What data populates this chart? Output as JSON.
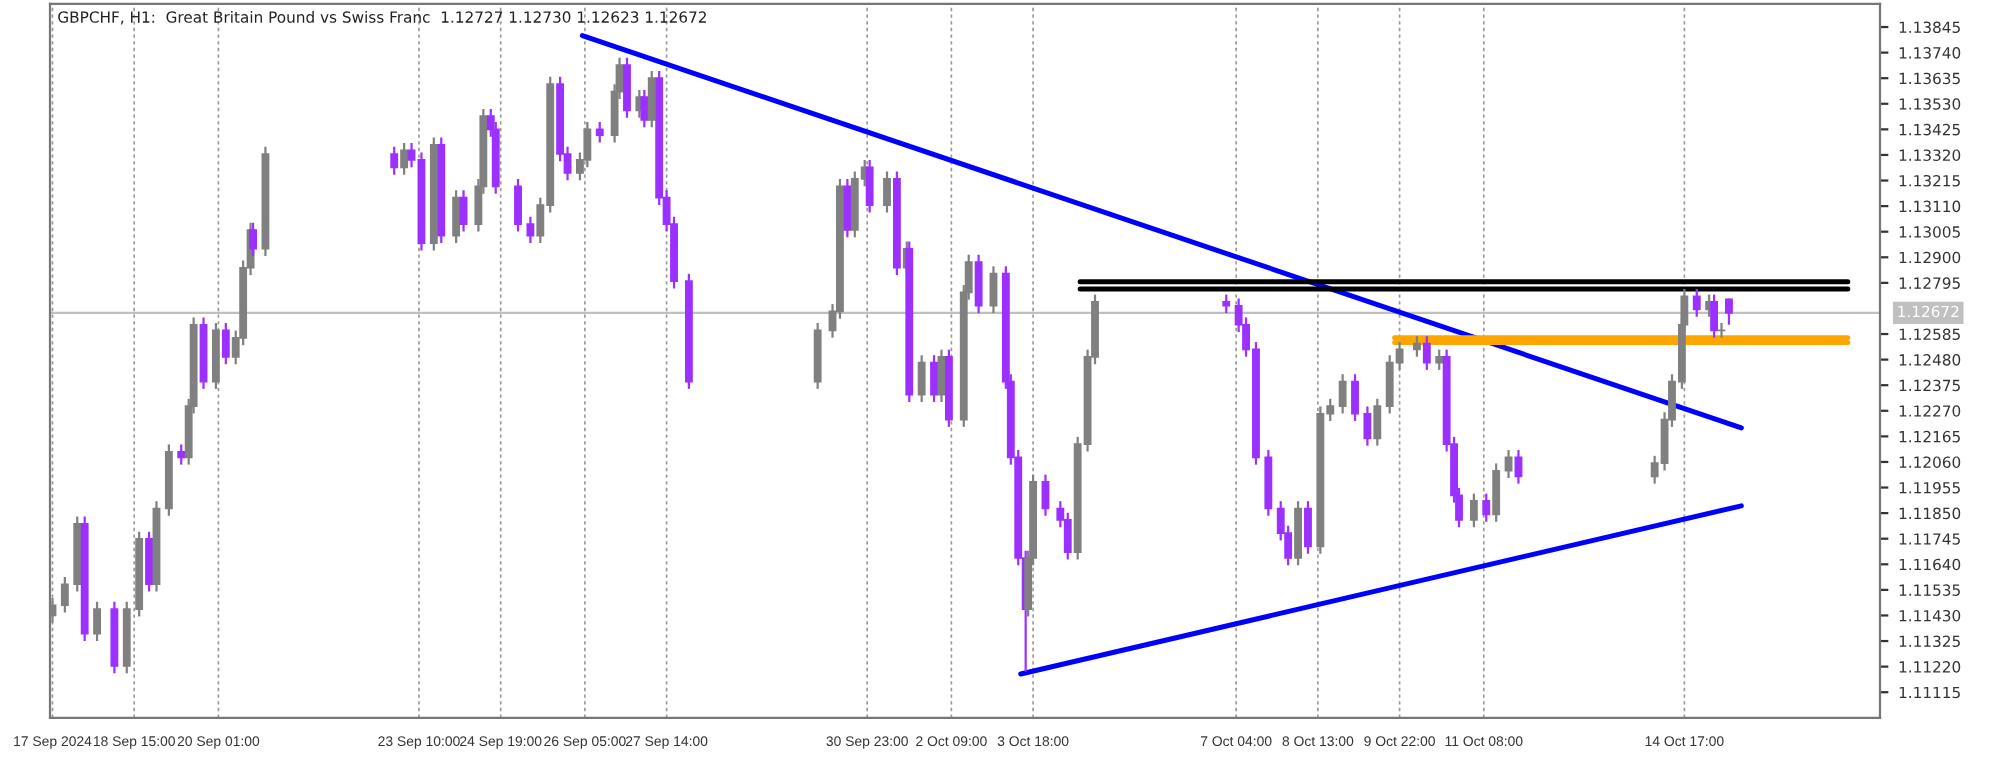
{
  "chart_data": {
    "type": "candlestick",
    "title": "GBPCHF, H1:  Great Britain Pound vs Swiss Franc  1.12727 1.12730 1.12623 1.12672",
    "x": [
      "2024-09-17T06:00",
      "2024-09-17T11:00",
      "2024-09-17T16:00",
      "2024-09-17T19:00",
      "2024-09-18T00:00",
      "2024-09-18T07:00",
      "2024-09-18T12:00",
      "2024-09-18T17:00",
      "2024-09-18T21:00",
      "2024-09-19T00:00",
      "2024-09-19T05:00",
      "2024-09-19T10:00",
      "2024-09-19T13:00",
      "2024-09-19T15:00",
      "2024-09-19T19:00",
      "2024-09-20T00:00",
      "2024-09-20T04:00",
      "2024-09-20T08:00",
      "2024-09-20T11:00",
      "2024-09-20T14:00",
      "2024-09-20T15:00",
      "2024-09-20T20:00",
      "2024-09-23T00:00",
      "2024-09-23T04:00",
      "2024-09-23T07:00",
      "2024-09-23T11:00",
      "2024-09-23T16:00",
      "2024-09-23T19:00",
      "2024-09-24T01:00",
      "2024-09-24T04:00",
      "2024-09-24T10:00",
      "2024-09-24T12:00",
      "2024-09-24T15:00",
      "2024-09-24T17:00",
      "2024-09-25T02:00",
      "2024-09-25T07:00",
      "2024-09-25T11:00",
      "2024-09-25T15:00",
      "2024-09-25T19:00",
      "2024-09-25T22:00",
      "2024-09-26T03:00",
      "2024-09-26T06:00",
      "2024-09-26T11:00",
      "2024-09-26T17:00",
      "2024-09-26T19:00",
      "2024-09-26T22:00",
      "2024-09-27T03:00",
      "2024-09-27T05:00",
      "2024-09-27T08:00",
      "2024-09-27T11:00",
      "2024-09-27T14:00",
      "2024-09-27T17:00",
      "2024-09-27T23:00",
      "2024-09-30T03:00",
      "2024-09-30T09:00",
      "2024-09-30T12:00",
      "2024-09-30T15:00",
      "2024-09-30T18:00",
      "2024-09-30T22:00",
      "2024-10-01T00:00",
      "2024-10-01T07:00",
      "2024-10-01T11:00",
      "2024-10-01T15:00",
      "2024-10-01T16:00",
      "2024-10-01T21:00",
      "2024-10-02T02:00",
      "2024-10-02T05:00",
      "2024-10-02T08:00",
      "2024-10-02T14:00",
      "2024-10-02T16:00",
      "2024-10-02T20:00",
      "2024-10-03T02:00",
      "2024-10-03T07:00",
      "2024-10-03T09:00",
      "2024-10-03T12:00",
      "2024-10-03T15:00",
      "2024-10-03T16:00",
      "2024-10-03T18:00",
      "2024-10-03T23:00",
      "2024-10-04T05:00",
      "2024-10-04T08:00",
      "2024-10-04T12:00",
      "2024-10-04T16:00",
      "2024-10-04T19:00",
      "2024-10-07T00:00",
      "2024-10-07T05:00",
      "2024-10-07T08:00",
      "2024-10-07T12:00",
      "2024-10-07T17:00",
      "2024-10-07T22:00",
      "2024-10-08T01:00",
      "2024-10-08T05:00",
      "2024-10-08T09:00",
      "2024-10-08T14:00",
      "2024-10-08T18:00",
      "2024-10-08T23:00",
      "2024-10-09T04:00",
      "2024-10-09T09:00",
      "2024-10-09T13:00",
      "2024-10-09T18:00",
      "2024-10-09T22:00",
      "2024-10-10T05:00",
      "2024-10-10T09:00",
      "2024-10-10T14:00",
      "2024-10-10T17:00",
      "2024-10-10T20:00",
      "2024-10-10T22:00",
      "2024-10-11T04:00",
      "2024-10-11T09:00",
      "2024-10-11T13:00",
      "2024-10-11T18:00",
      "2024-10-11T22:00",
      "2024-10-14T05:00",
      "2024-10-14T09:00",
      "2024-10-14T12:00",
      "2024-10-14T16:00",
      "2024-10-14T17:00",
      "2024-10-14T22:00",
      "2024-10-15T03:00",
      "2024-10-15T05:00",
      "2024-10-15T08:00",
      "2024-10-15T11:00"
    ],
    "ohlc": [
      [
        1.1143,
        1.11502,
        1.114,
        1.11472
      ],
      [
        1.11472,
        1.11588,
        1.11442,
        1.11558
      ],
      [
        1.11558,
        1.11836,
        1.11528,
        1.11806
      ],
      [
        1.11806,
        1.11836,
        1.11325,
        1.11355
      ],
      [
        1.11355,
        1.11486,
        1.11325,
        1.11456
      ],
      [
        1.11456,
        1.11486,
        1.11193,
        1.11223
      ],
      [
        1.11223,
        1.11486,
        1.11193,
        1.11456
      ],
      [
        1.11456,
        1.11774,
        1.11426,
        1.11744
      ],
      [
        1.11744,
        1.11774,
        1.11528,
        1.11558
      ],
      [
        1.11558,
        1.11899,
        1.11528,
        1.11869
      ],
      [
        1.11869,
        1.12132,
        1.11839,
        1.12102
      ],
      [
        1.12102,
        1.12132,
        1.12049,
        1.12079
      ],
      [
        1.12079,
        1.12319,
        1.12049,
        1.12289
      ],
      [
        1.12289,
        1.12653,
        1.12259,
        1.12623
      ],
      [
        1.12623,
        1.12653,
        1.1236,
        1.1239
      ],
      [
        1.1239,
        1.1263,
        1.1236,
        1.126
      ],
      [
        1.126,
        1.1263,
        1.12461,
        1.12491
      ],
      [
        1.12491,
        1.12599,
        1.12461,
        1.12569
      ],
      [
        1.12569,
        1.12887,
        1.12539,
        1.12857
      ],
      [
        1.12857,
        1.13042,
        1.12827,
        1.13012
      ],
      [
        1.13012,
        1.13042,
        1.12905,
        1.12935
      ],
      [
        1.12935,
        1.13354,
        1.12905,
        1.13324
      ],
      [
        1.13324,
        1.13354,
        1.13239,
        1.13269
      ],
      [
        1.13269,
        1.13369,
        1.13239,
        1.13339
      ],
      [
        1.13339,
        1.13369,
        1.1327,
        1.133
      ],
      [
        1.133,
        1.1333,
        1.12928,
        1.12958
      ],
      [
        1.12958,
        1.13392,
        1.12928,
        1.13362
      ],
      [
        1.13362,
        1.13392,
        1.12959,
        1.12989
      ],
      [
        1.12989,
        1.13175,
        1.12959,
        1.13145
      ],
      [
        1.13145,
        1.13175,
        1.13006,
        1.13036
      ],
      [
        1.13036,
        1.13221,
        1.13006,
        1.13191
      ],
      [
        1.13191,
        1.13509,
        1.13161,
        1.13479
      ],
      [
        1.13479,
        1.13509,
        1.13395,
        1.13425
      ],
      [
        1.13425,
        1.13455,
        1.13161,
        1.13191
      ],
      [
        1.13191,
        1.13221,
        1.13006,
        1.13036
      ],
      [
        1.13036,
        1.13066,
        1.12959,
        1.12989
      ],
      [
        1.12989,
        1.13144,
        1.12959,
        1.13114
      ],
      [
        1.13114,
        1.13641,
        1.13084,
        1.13611
      ],
      [
        1.13611,
        1.13641,
        1.13294,
        1.13324
      ],
      [
        1.13324,
        1.13354,
        1.13216,
        1.13246
      ],
      [
        1.13246,
        1.1333,
        1.13216,
        1.133
      ],
      [
        1.133,
        1.13455,
        1.1327,
        1.13425
      ],
      [
        1.13425,
        1.13455,
        1.13371,
        1.13401
      ],
      [
        1.13401,
        1.1361,
        1.13371,
        1.1358
      ],
      [
        1.1358,
        1.13719,
        1.1355,
        1.13689
      ],
      [
        1.13689,
        1.13719,
        1.13473,
        1.13503
      ],
      [
        1.13503,
        1.13587,
        1.13473,
        1.13557
      ],
      [
        1.13557,
        1.13587,
        1.13434,
        1.13464
      ],
      [
        1.13464,
        1.13665,
        1.13434,
        1.13635
      ],
      [
        1.13635,
        1.13665,
        1.13115,
        1.13145
      ],
      [
        1.13145,
        1.13175,
        1.13006,
        1.13036
      ],
      [
        1.13036,
        1.13066,
        1.12772,
        1.12802
      ],
      [
        1.12802,
        1.12832,
        1.1236,
        1.1239
      ],
      [
        1.1239,
        1.1263,
        1.1236,
        1.126
      ],
      [
        1.126,
        1.12708,
        1.1257,
        1.12678
      ],
      [
        1.12678,
        1.13221,
        1.12648,
        1.13191
      ],
      [
        1.13191,
        1.13221,
        1.12982,
        1.13012
      ],
      [
        1.13012,
        1.13252,
        1.12982,
        1.13222
      ],
      [
        1.13222,
        1.13299,
        1.13192,
        1.13269
      ],
      [
        1.13269,
        1.13299,
        1.13084,
        1.13114
      ],
      [
        1.13114,
        1.13252,
        1.13084,
        1.13222
      ],
      [
        1.13222,
        1.13252,
        1.12827,
        1.12857
      ],
      [
        1.12857,
        1.12965,
        1.12827,
        1.12935
      ],
      [
        1.12935,
        1.12965,
        1.12306,
        1.12336
      ],
      [
        1.12336,
        1.12498,
        1.12306,
        1.12468
      ],
      [
        1.12468,
        1.12498,
        1.12306,
        1.12336
      ],
      [
        1.12336,
        1.12521,
        1.12306,
        1.12491
      ],
      [
        1.12491,
        1.12521,
        1.12204,
        1.12234
      ],
      [
        1.12234,
        1.12786,
        1.12204,
        1.12756
      ],
      [
        1.12756,
        1.1291,
        1.12726,
        1.1288
      ],
      [
        1.1288,
        1.1291,
        1.12671,
        1.12701
      ],
      [
        1.12701,
        1.12863,
        1.12671,
        1.12833
      ],
      [
        1.12833,
        1.12863,
        1.1236,
        1.1239
      ],
      [
        1.1239,
        1.1242,
        1.12049,
        1.12079
      ],
      [
        1.12079,
        1.12109,
        1.11636,
        1.11666
      ],
      [
        1.11666,
        1.11696,
        1.112,
        1.11456
      ],
      [
        1.11456,
        1.11696,
        1.11426,
        1.11666
      ],
      [
        1.11666,
        1.12008,
        1.11636,
        1.11978
      ],
      [
        1.11978,
        1.12008,
        1.11839,
        1.11869
      ],
      [
        1.11869,
        1.11899,
        1.11792,
        1.11822
      ],
      [
        1.11822,
        1.11852,
        1.1166,
        1.1169
      ],
      [
        1.1169,
        1.12163,
        1.1166,
        1.12133
      ],
      [
        1.12133,
        1.12521,
        1.12103,
        1.12491
      ],
      [
        1.12491,
        1.12747,
        1.12461,
        1.12717
      ],
      [
        1.12717,
        1.12747,
        1.12671,
        1.12701
      ],
      [
        1.12701,
        1.12731,
        1.12593,
        1.12623
      ],
      [
        1.12623,
        1.12653,
        1.12492,
        1.12522
      ],
      [
        1.12522,
        1.12552,
        1.12049,
        1.12079
      ],
      [
        1.12079,
        1.12109,
        1.11839,
        1.11869
      ],
      [
        1.11869,
        1.11899,
        1.11738,
        1.11768
      ],
      [
        1.11768,
        1.11798,
        1.11636,
        1.11666
      ],
      [
        1.11666,
        1.11899,
        1.11636,
        1.11869
      ],
      [
        1.11869,
        1.11899,
        1.11683,
        1.11713
      ],
      [
        1.11713,
        1.12288,
        1.11683,
        1.12258
      ],
      [
        1.12258,
        1.12319,
        1.12228,
        1.12289
      ],
      [
        1.12289,
        1.1242,
        1.12259,
        1.1239
      ],
      [
        1.1239,
        1.1242,
        1.12228,
        1.12258
      ],
      [
        1.12258,
        1.12288,
        1.12127,
        1.12157
      ],
      [
        1.12157,
        1.12319,
        1.12127,
        1.12289
      ],
      [
        1.12289,
        1.12498,
        1.12259,
        1.12468
      ],
      [
        1.12468,
        1.12552,
        1.12438,
        1.12522
      ],
      [
        1.12522,
        1.12576,
        1.12492,
        1.12546
      ],
      [
        1.12546,
        1.12576,
        1.12438,
        1.12468
      ],
      [
        1.12468,
        1.12521,
        1.12438,
        1.12491
      ],
      [
        1.12491,
        1.12521,
        1.12103,
        1.12133
      ],
      [
        1.12133,
        1.12163,
        1.11893,
        1.11923
      ],
      [
        1.11923,
        1.11953,
        1.11792,
        1.11822
      ],
      [
        1.11822,
        1.1193,
        1.11792,
        1.119
      ],
      [
        1.119,
        1.1193,
        1.11815,
        1.11845
      ],
      [
        1.11845,
        1.12054,
        1.11815,
        1.12024
      ],
      [
        1.12024,
        1.12109,
        1.11994,
        1.12079
      ],
      [
        1.12079,
        1.12109,
        1.11971,
        1.12001
      ],
      [
        1.12001,
        1.12085,
        1.11971,
        1.12055
      ],
      [
        1.12055,
        1.12264,
        1.12025,
        1.12234
      ],
      [
        1.12234,
        1.1242,
        1.12204,
        1.1239
      ],
      [
        1.1239,
        1.12653,
        1.1236,
        1.12623
      ],
      [
        1.12623,
        1.1277,
        1.12593,
        1.1274
      ],
      [
        1.1274,
        1.1277,
        1.12656,
        1.12686
      ],
      [
        1.12686,
        1.12747,
        1.12656,
        1.12717
      ],
      [
        1.12717,
        1.12747,
        1.1257,
        1.126
      ],
      [
        1.126,
        1.1263,
        1.1257,
        1.126
      ],
      [
        1.12727,
        1.1273,
        1.12623,
        1.12672
      ]
    ],
    "colors": [
      "#808080",
      "#808080",
      "#808080",
      "#9b30ff",
      "#808080",
      "#9b30ff",
      "#808080",
      "#808080",
      "#9b30ff",
      "#808080",
      "#808080",
      "#9b30ff",
      "#808080",
      "#808080",
      "#9b30ff",
      "#808080",
      "#9b30ff",
      "#808080",
      "#808080",
      "#808080",
      "#9b30ff",
      "#808080",
      "#9b30ff",
      "#808080",
      "#9b30ff",
      "#9b30ff",
      "#808080",
      "#9b30ff",
      "#808080",
      "#9b30ff",
      "#808080",
      "#808080",
      "#9b30ff",
      "#9b30ff",
      "#9b30ff",
      "#9b30ff",
      "#808080",
      "#808080",
      "#9b30ff",
      "#9b30ff",
      "#808080",
      "#808080",
      "#9b30ff",
      "#808080",
      "#808080",
      "#9b30ff",
      "#808080",
      "#9b30ff",
      "#808080",
      "#9b30ff",
      "#9b30ff",
      "#9b30ff",
      "#9b30ff",
      "#808080",
      "#808080",
      "#808080",
      "#9b30ff",
      "#808080",
      "#808080",
      "#9b30ff",
      "#808080",
      "#9b30ff",
      "#808080",
      "#9b30ff",
      "#808080",
      "#9b30ff",
      "#808080",
      "#9b30ff",
      "#808080",
      "#808080",
      "#9b30ff",
      "#808080",
      "#9b30ff",
      "#9b30ff",
      "#9b30ff",
      "#9b30ff",
      "#808080",
      "#808080",
      "#9b30ff",
      "#9b30ff",
      "#9b30ff",
      "#808080",
      "#808080",
      "#808080",
      "#9b30ff",
      "#9b30ff",
      "#9b30ff",
      "#9b30ff",
      "#9b30ff",
      "#9b30ff",
      "#9b30ff",
      "#808080",
      "#9b30ff",
      "#808080",
      "#808080",
      "#808080",
      "#9b30ff",
      "#9b30ff",
      "#808080",
      "#808080",
      "#808080",
      "#808080",
      "#9b30ff",
      "#808080",
      "#9b30ff",
      "#9b30ff",
      "#9b30ff",
      "#808080",
      "#9b30ff",
      "#808080",
      "#808080",
      "#9b30ff",
      "#808080",
      "#808080",
      "#808080",
      "#808080",
      "#808080",
      "#9b30ff",
      "#808080",
      "#9b30ff",
      "#808080",
      "#9b30ff"
    ],
    "series": [
      {
        "type": "line",
        "color": "#0000ff",
        "x": [
          "2024-09-26T04:00",
          "2024-10-15T16:00"
        ],
        "values": [
          1.1381,
          1.122
        ]
      },
      {
        "type": "line",
        "color": "#0000ff",
        "x": [
          "2024-10-03T13:00",
          "2024-10-15T16:00"
        ],
        "values": [
          1.1119,
          1.1188
        ]
      },
      {
        "type": "line",
        "color": "#000000",
        "x": [
          "2024-10-04T13:00",
          "2024-10-17T11:00"
        ],
        "values": [
          1.128,
          1.128
        ]
      },
      {
        "type": "line",
        "color": "#000000",
        "x": [
          "2024-10-04T13:00",
          "2024-10-17T11:00"
        ],
        "values": [
          1.1277,
          1.1277
        ]
      },
      {
        "type": "line",
        "color": "#ffa500",
        "x": [
          "2024-10-09T20:00",
          "2024-10-17T11:00"
        ],
        "values": [
          1.1257,
          1.1257
        ]
      },
      {
        "type": "line",
        "color": "#ffa500",
        "x": [
          "2024-10-09T20:00",
          "2024-10-17T11:00"
        ],
        "values": [
          1.1255,
          1.1255
        ]
      }
    ],
    "ref_lines": [
      {
        "axis": "y",
        "value": 1.12672,
        "label": "1.12672",
        "color": "#c0c0c0"
      }
    ],
    "xlim": [
      "2024-09-17T05:00",
      "2024-10-18T00:00"
    ],
    "xticks": [
      {
        "value": "2024-09-17T06:00",
        "label": "17 Sep 2024"
      },
      {
        "value": "2024-09-18T15:00",
        "label": "18 Sep 15:00"
      },
      {
        "value": "2024-09-20T01:00",
        "label": "20 Sep 01:00"
      },
      {
        "value": "2024-09-23T10:00",
        "label": "23 Sep 10:00"
      },
      {
        "value": "2024-09-24T19:00",
        "label": "24 Sep 19:00"
      },
      {
        "value": "2024-09-26T05:00",
        "label": "26 Sep 05:00"
      },
      {
        "value": "2024-09-27T14:00",
        "label": "27 Sep 14:00"
      },
      {
        "value": "2024-09-30T23:00",
        "label": "30 Sep 23:00"
      },
      {
        "value": "2024-10-02T09:00",
        "label": "2 Oct 09:00"
      },
      {
        "value": "2024-10-03T18:00",
        "label": "3 Oct 18:00"
      },
      {
        "value": "2024-10-07T04:00",
        "label": "7 Oct 04:00"
      },
      {
        "value": "2024-10-08T13:00",
        "label": "8 Oct 13:00"
      },
      {
        "value": "2024-10-09T22:00",
        "label": "9 Oct 22:00"
      },
      {
        "value": "2024-10-11T08:00",
        "label": "11 Oct 08:00"
      },
      {
        "value": "2024-10-14T17:00",
        "label": "14 Oct 17:00"
      }
    ],
    "ylim": [
      1.1101,
      1.1394
    ],
    "yticks": [
      1.11115,
      {
        "value": 1.1122,
        "label": "1.11220"
      },
      1.11325,
      {
        "value": 1.1143,
        "label": "1.11430"
      },
      1.11535,
      {
        "value": 1.1164,
        "label": "1.11640"
      },
      1.11745,
      {
        "value": 1.1185,
        "label": "1.11850"
      },
      1.11955,
      {
        "value": 1.1206,
        "label": "1.12060"
      },
      1.12165,
      {
        "value": 1.1227,
        "label": "1.12270"
      },
      1.12375,
      {
        "value": 1.1248,
        "label": "1.12480"
      },
      1.12585,
      1.12795,
      {
        "value": 1.129,
        "label": "1.12900"
      },
      1.13005,
      {
        "value": 1.1311,
        "label": "1.13110"
      },
      1.13215,
      {
        "value": 1.1332,
        "label": "1.13320"
      },
      1.13425,
      {
        "value": 1.1353,
        "label": "1.13530"
      },
      1.13635,
      {
        "value": 1.1374,
        "label": "1.13740"
      },
      1.13845
    ],
    "grid": "x"
  }
}
